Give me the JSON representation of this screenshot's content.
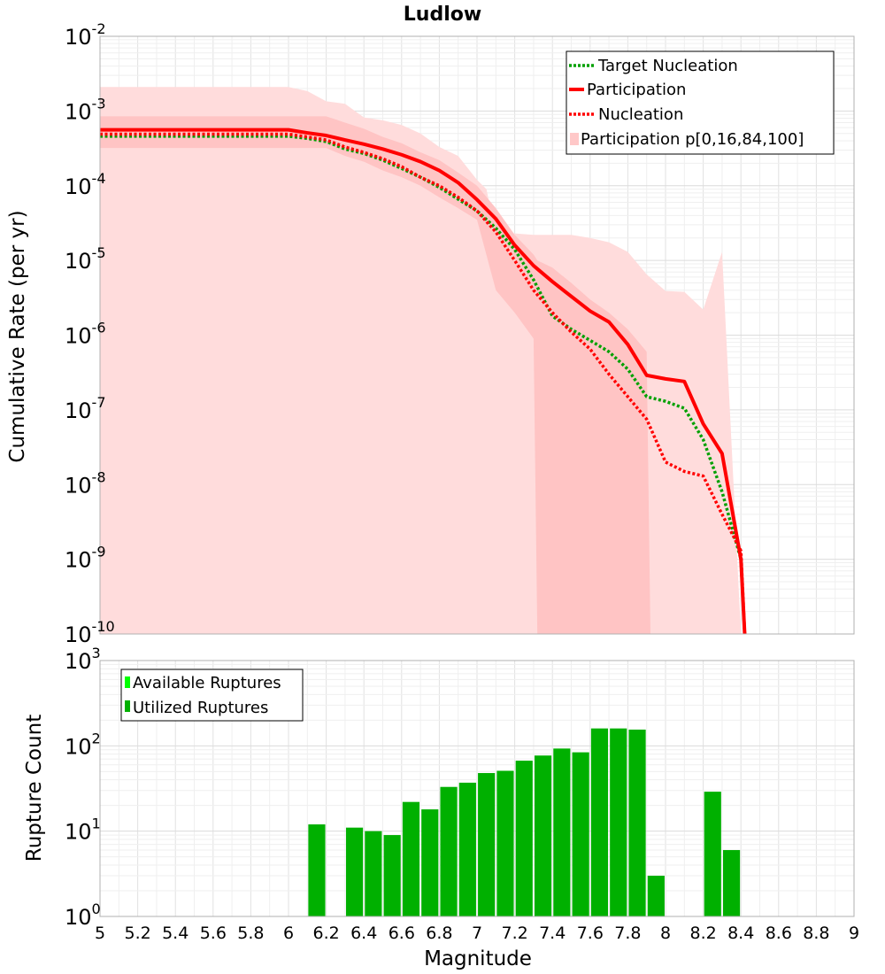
{
  "title": "Ludlow",
  "chart_data": [
    {
      "type": "line",
      "title": "Ludlow",
      "xlabel": "Magnitude",
      "ylabel": "Cumulative Rate (per yr)",
      "yscale": "log",
      "xlim": [
        5,
        9
      ],
      "ylim_exp": [
        -10,
        -2
      ],
      "x_ticks": [
        "5",
        "5.2",
        "5.4",
        "5.6",
        "5.8",
        "6",
        "6.2",
        "6.4",
        "6.6",
        "6.8",
        "7",
        "7.2",
        "7.4",
        "7.6",
        "7.8",
        "8",
        "8.2",
        "8.4",
        "8.6",
        "8.8",
        "9"
      ],
      "y_ticks": [
        {
          "base": "10",
          "exp": "-10",
          "value": 1e-10
        },
        {
          "base": "10",
          "exp": "-9",
          "value": 1e-09
        },
        {
          "base": "10",
          "exp": "-8",
          "value": 1e-08
        },
        {
          "base": "10",
          "exp": "-7",
          "value": 1e-07
        },
        {
          "base": "10",
          "exp": "-6",
          "value": 1e-06
        },
        {
          "base": "10",
          "exp": "-5",
          "value": 1e-05
        },
        {
          "base": "10",
          "exp": "-4",
          "value": 0.0001
        },
        {
          "base": "10",
          "exp": "-3",
          "value": 0.001
        },
        {
          "base": "10",
          "exp": "-2",
          "value": 0.01
        }
      ],
      "legend": [
        {
          "label": "Target Nucleation",
          "color": "#00a000",
          "style": "dotted"
        },
        {
          "label": "Participation",
          "color": "#ff0000",
          "style": "solid"
        },
        {
          "label": "Nucleation",
          "color": "#ff0000",
          "style": "dotted"
        },
        {
          "label": "Participation p[0,16,84,100]",
          "color": "#ffc8c8",
          "style": "fill"
        }
      ],
      "legend_position": "top-right",
      "series": [
        {
          "name": "Target Nucleation",
          "color": "#00a000",
          "style": "dotted",
          "x": [
            5.0,
            6.0,
            6.1,
            6.2,
            6.3,
            6.4,
            6.5,
            6.6,
            6.7,
            6.8,
            6.9,
            7.0,
            7.1,
            7.2,
            7.3,
            7.4,
            7.5,
            7.6,
            7.7,
            7.8,
            7.9,
            8.0,
            8.1,
            8.2,
            8.3,
            8.4,
            8.42
          ],
          "y": [
            0.00046,
            0.00046,
            0.00043,
            0.00039,
            0.00031,
            0.00027,
            0.00022,
            0.00017,
            0.00013,
            9.5e-05,
            6.6e-05,
            4.6e-05,
            2.7e-05,
            1.4e-05,
            5.5e-06,
            1.8e-06,
            1.2e-06,
            8.5e-07,
            6e-07,
            3.5e-07,
            1.5e-07,
            1.3e-07,
            1.05e-07,
            4e-08,
            8e-09,
            1e-09,
            1e-10
          ]
        },
        {
          "name": "Participation",
          "color": "#ff0000",
          "style": "solid",
          "x": [
            5.0,
            6.0,
            6.1,
            6.2,
            6.3,
            6.4,
            6.5,
            6.6,
            6.7,
            6.8,
            6.9,
            7.0,
            7.1,
            7.2,
            7.3,
            7.4,
            7.5,
            7.6,
            7.7,
            7.8,
            7.9,
            8.0,
            8.1,
            8.2,
            8.3,
            8.4,
            8.42
          ],
          "y": [
            0.00056,
            0.00056,
            0.00051,
            0.00047,
            0.00041,
            0.00036,
            0.00031,
            0.00026,
            0.00021,
            0.00016,
            0.00011,
            6.5e-05,
            3.6e-05,
            1.6e-05,
            8.5e-06,
            5.2e-06,
            3.3e-06,
            2.1e-06,
            1.5e-06,
            7.5e-07,
            2.9e-07,
            2.6e-07,
            2.4e-07,
            6.5e-08,
            2.6e-08,
            1e-09,
            1e-10
          ]
        },
        {
          "name": "Nucleation",
          "color": "#ff0000",
          "style": "dotted",
          "x": [
            5.0,
            6.0,
            6.1,
            6.2,
            6.3,
            6.4,
            6.5,
            6.6,
            6.7,
            6.8,
            6.9,
            7.0,
            7.1,
            7.2,
            7.3,
            7.4,
            7.5,
            7.6,
            7.7,
            7.8,
            7.9,
            8.0,
            8.1,
            8.2,
            8.3,
            8.4,
            8.42
          ],
          "y": [
            0.00049,
            0.00049,
            0.00045,
            0.00041,
            0.00033,
            0.00028,
            0.00023,
            0.00018,
            0.00013,
            0.0001,
            7e-05,
            4.6e-05,
            2.4e-05,
            1e-05,
            4e-06,
            2e-06,
            1.1e-06,
            6.5e-07,
            3e-07,
            1.5e-07,
            7.5e-08,
            2e-08,
            1.5e-08,
            1.3e-08,
            4e-09,
            1.3e-09,
            1e-10
          ]
        }
      ],
      "bands": [
        {
          "name": "p0-p100",
          "color": "#ffdcdc",
          "x": [
            5.0,
            6.0,
            6.1,
            6.2,
            6.3,
            6.4,
            6.5,
            6.6,
            6.7,
            6.8,
            6.9,
            7.0,
            7.05,
            7.1,
            7.2,
            7.3,
            7.4,
            7.5,
            7.6,
            7.7,
            7.8,
            7.9,
            8.0,
            8.1,
            8.2,
            8.3,
            8.4,
            8.42
          ],
          "upper": [
            0.0021,
            0.0021,
            0.00185,
            0.00135,
            0.00125,
            0.00082,
            0.00075,
            0.00065,
            0.0005,
            0.00033,
            0.00025,
            0.00012,
            9e-05,
            2.3e-05,
            2.3e-05,
            2.2e-05,
            2.2e-05,
            2.2e-05,
            2e-05,
            1.75e-05,
            1.3e-05,
            6.5e-06,
            3.9e-06,
            3.8e-06,
            2.2e-06,
            1.3e-05,
            1e-10,
            1e-10
          ],
          "lower": [
            1e-10,
            1e-10,
            1e-10,
            1e-10,
            1e-10,
            1e-10,
            1e-10,
            1e-10,
            1e-10,
            1e-10,
            1e-10,
            1e-10,
            1e-10,
            1e-10,
            1e-10,
            1e-10,
            1e-10,
            1e-10,
            1e-10,
            1e-10,
            1e-10,
            1e-10,
            1e-10,
            1e-10,
            1e-10,
            1e-10,
            1e-10,
            1e-10
          ]
        },
        {
          "name": "p16-p84",
          "color": "#ffc4c4",
          "x": [
            5.0,
            6.0,
            6.1,
            6.2,
            6.3,
            6.4,
            6.5,
            6.6,
            6.7,
            6.8,
            6.9,
            7.0,
            7.1,
            7.2,
            7.3,
            7.32,
            7.4,
            7.5,
            7.6,
            7.7,
            7.8,
            7.9,
            7.92
          ],
          "upper": [
            0.00085,
            0.00085,
            0.00085,
            0.00085,
            0.0007,
            0.00058,
            0.00045,
            0.00037,
            0.00028,
            0.00022,
            0.00015,
            0.0001,
            5e-05,
            2.2e-05,
            1.2e-05,
            1e-05,
            8e-06,
            5e-06,
            3e-06,
            2e-06,
            1.2e-06,
            6e-07,
            1e-10
          ],
          "lower": [
            0.00032,
            0.00032,
            0.00032,
            0.00032,
            0.00025,
            0.00021,
            0.00016,
            0.00013,
            0.0001,
            7e-05,
            5e-05,
            3.5e-05,
            4e-06,
            2e-06,
            9e-07,
            1e-10,
            1e-10,
            1e-10,
            1e-10,
            1e-10,
            1e-10,
            1e-10,
            1e-10
          ]
        }
      ]
    },
    {
      "type": "bar",
      "xlabel": "Magnitude",
      "ylabel": "Rupture Count",
      "yscale": "log",
      "xlim": [
        5,
        9
      ],
      "ylim_exp": [
        0,
        3
      ],
      "y_ticks": [
        {
          "base": "10",
          "exp": "0",
          "value": 1
        },
        {
          "base": "10",
          "exp": "1",
          "value": 10
        },
        {
          "base": "10",
          "exp": "2",
          "value": 100
        },
        {
          "base": "10",
          "exp": "3",
          "value": 1000
        }
      ],
      "legend": [
        {
          "label": "Available Ruptures",
          "color": "#00ff00"
        },
        {
          "label": "Utilized Ruptures",
          "color": "#00b000"
        }
      ],
      "legend_position": "top-left",
      "bar_color": "#00b000",
      "bar_width": 0.09,
      "centers": [
        6.15,
        6.35,
        6.45,
        6.55,
        6.65,
        6.75,
        6.85,
        6.95,
        7.05,
        7.15,
        7.25,
        7.35,
        7.45,
        7.55,
        7.65,
        7.75,
        7.85,
        7.95,
        8.25,
        8.35
      ],
      "values": [
        12,
        11,
        10,
        9,
        22,
        18,
        33,
        37,
        48,
        51,
        67,
        77,
        93,
        84,
        160,
        160,
        155,
        3,
        29,
        6
      ]
    }
  ]
}
